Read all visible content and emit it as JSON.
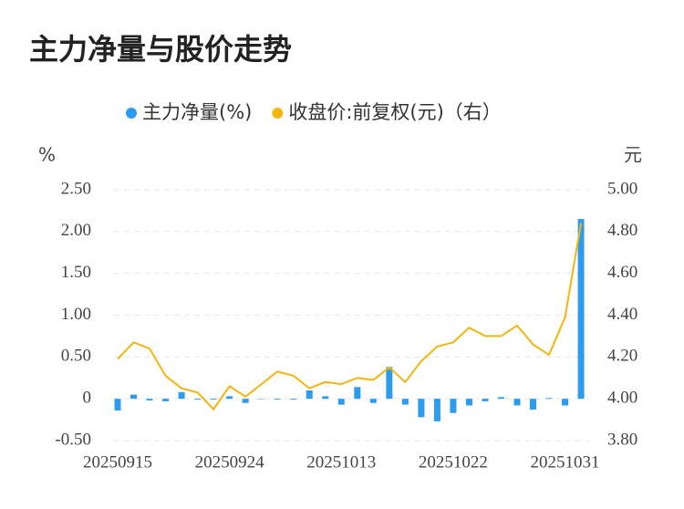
{
  "chart_data": {
    "type": "bar_line",
    "title": "主力净量与股价走势",
    "y_label": "%",
    "y2_label": "元",
    "categories": [
      "20250915",
      null,
      null,
      null,
      null,
      null,
      null,
      "20250924",
      null,
      null,
      null,
      null,
      null,
      null,
      "20251013",
      null,
      null,
      null,
      null,
      null,
      null,
      "20251022",
      null,
      null,
      null,
      null,
      null,
      null,
      "20251031",
      null
    ],
    "series": [
      {
        "name": "主力净量(%)",
        "color": "#2b9cf0",
        "kind": "bar",
        "values": [
          -0.14,
          0.05,
          -0.02,
          -0.03,
          0.08,
          -0.01,
          -0.01,
          0.03,
          -0.05,
          0.0,
          -0.01,
          -0.01,
          0.1,
          0.03,
          -0.07,
          0.14,
          -0.05,
          0.38,
          -0.07,
          -0.22,
          -0.27,
          -0.17,
          -0.08,
          -0.03,
          0.02,
          -0.08,
          -0.13,
          0.01,
          -0.08,
          2.15
        ]
      },
      {
        "name": "收盘价:前复权(元)（右）",
        "color": "#f5b50f",
        "kind": "line",
        "axis": "y2",
        "values": [
          4.19,
          4.27,
          4.24,
          4.11,
          4.05,
          4.03,
          3.95,
          4.06,
          4.01,
          4.07,
          4.13,
          4.11,
          4.05,
          4.08,
          4.07,
          4.1,
          4.09,
          4.15,
          4.08,
          4.18,
          4.25,
          4.27,
          4.34,
          4.3,
          4.3,
          4.35,
          4.26,
          4.21,
          4.39,
          4.84
        ]
      }
    ],
    "ylim": [
      -0.5,
      2.5
    ],
    "yticks": [
      {
        "value": -0.5,
        "label": "-0.50"
      },
      0,
      {
        "value": 0.5,
        "label": "0.50"
      },
      {
        "value": 1,
        "label": "1.00"
      },
      {
        "value": 1.5,
        "label": "1.50"
      },
      {
        "value": 2,
        "label": "2.00"
      },
      {
        "value": 2.5,
        "label": "2.50"
      }
    ],
    "y2lim": [
      3.8,
      5.0
    ],
    "y2ticks": [
      {
        "value": 3.8,
        "label": "3.80"
      },
      {
        "value": 4,
        "label": "4.00"
      },
      {
        "value": 4.2,
        "label": "4.20"
      },
      {
        "value": 4.4,
        "label": "4.40"
      },
      {
        "value": 4.6,
        "label": "4.60"
      },
      {
        "value": 4.8,
        "label": "4.80"
      },
      {
        "value": 5,
        "label": "5.00"
      }
    ],
    "grid": true
  }
}
